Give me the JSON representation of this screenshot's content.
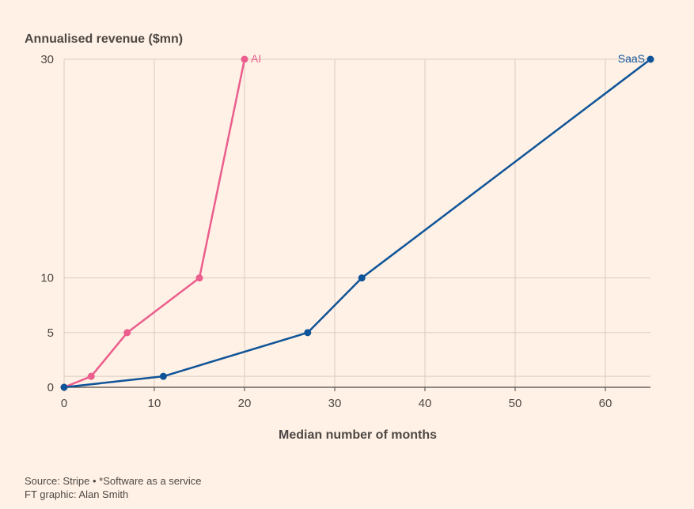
{
  "chart_data": {
    "type": "line",
    "ylabel": "Annualised revenue ($mn)",
    "xlabel": "Median number of months",
    "xlim": [
      0,
      65
    ],
    "ylim": [
      0,
      30
    ],
    "xticks": [
      0,
      10,
      20,
      30,
      40,
      50,
      60
    ],
    "yticks": [
      0,
      5,
      10,
      30
    ],
    "y_gridlines": [
      0,
      1,
      5,
      10,
      30
    ],
    "series": [
      {
        "name": "AI",
        "color": "#EB5E8D",
        "x": [
          0,
          3,
          7,
          15,
          20
        ],
        "y": [
          0,
          1,
          5,
          10,
          30
        ]
      },
      {
        "name": "SaaS",
        "color": "#0F5499",
        "x": [
          0,
          11,
          27,
          33,
          65
        ],
        "y": [
          0,
          1,
          5,
          10,
          30
        ]
      }
    ]
  },
  "footer": {
    "source": "Source: Stripe • *Software as a service",
    "credit": "FT graphic: Alan Smith"
  }
}
